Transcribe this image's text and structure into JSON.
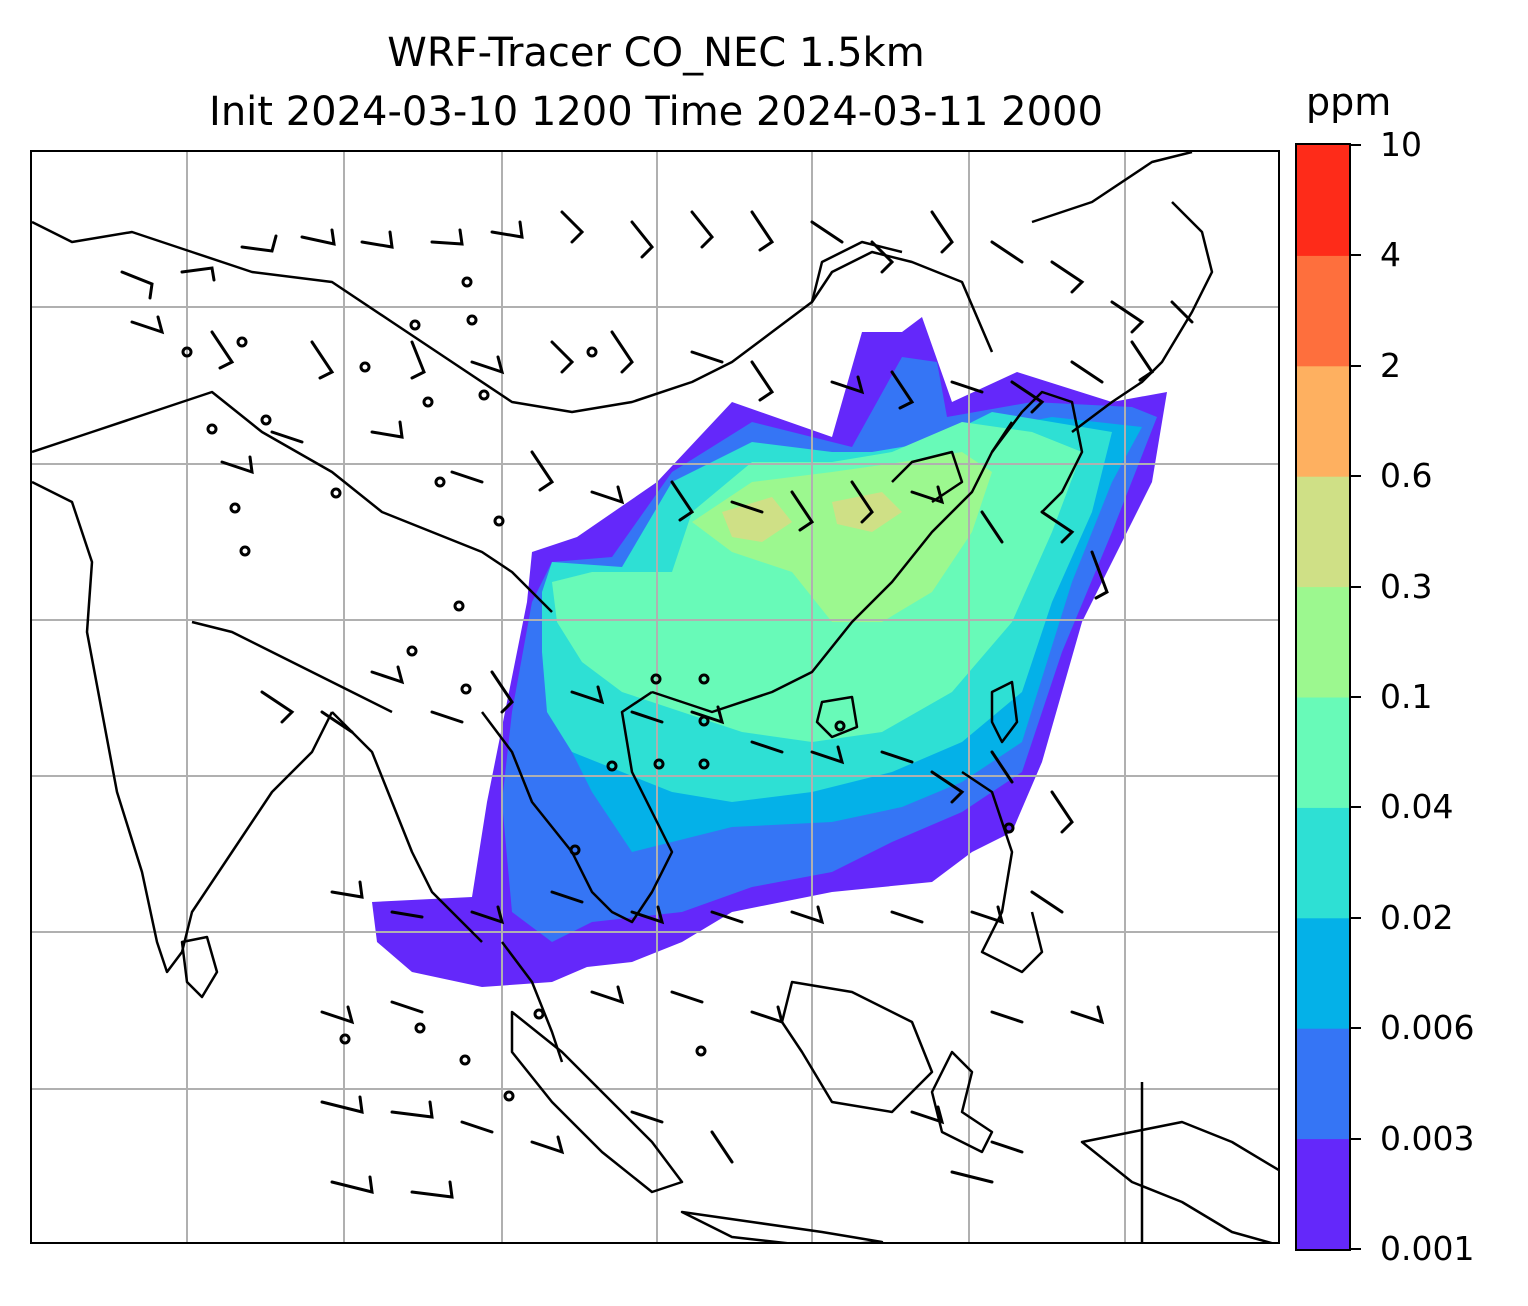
{
  "title": {
    "line1": "WRF-Tracer CO_NEC 1.5km",
    "line2": "Init 2024-03-10 1200 Time 2024-03-11 2000"
  },
  "colorbar": {
    "unit": "ppm",
    "levels": [
      "0.001",
      "0.003",
      "0.006",
      "0.02",
      "0.04",
      "0.1",
      "0.3",
      "0.6",
      "2",
      "4",
      "10"
    ],
    "colors": [
      "#6428fa",
      "#3575f5",
      "#04b1e8",
      "#2ee0d4",
      "#68fab8",
      "#9cf88f",
      "#cfe086",
      "#feb060",
      "#fe6f3d",
      "#fe2b19"
    ]
  },
  "colors": {
    "gridline": "#b0b0b0",
    "coastline": "#000000",
    "barb": "#000000"
  }
}
